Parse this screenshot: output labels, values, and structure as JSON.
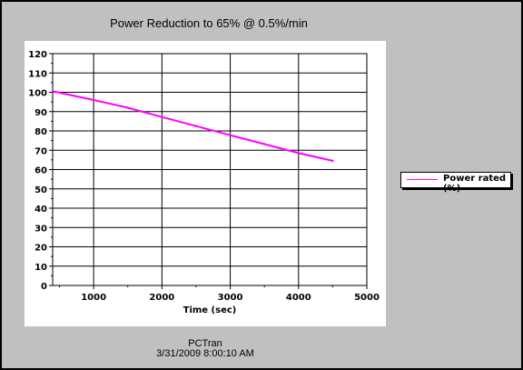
{
  "chart_data": {
    "type": "line",
    "title": "Power Reduction to 65% @ 0.5%/min",
    "xlabel": "Time (sec)",
    "ylabel": "",
    "xlim": [
      400,
      5000
    ],
    "ylim": [
      0,
      120
    ],
    "x_ticks": [
      1000,
      2000,
      3000,
      4000,
      5000
    ],
    "y_ticks": [
      0,
      10,
      20,
      30,
      40,
      50,
      60,
      70,
      80,
      90,
      100,
      110,
      120
    ],
    "grid": true,
    "legend_position": "right",
    "series": [
      {
        "name": "Power rated (%)",
        "color": "#ff00ff",
        "x": [
          400,
          1000,
          1500,
          2000,
          2500,
          3000,
          3500,
          4000,
          4500
        ],
        "y": [
          100.5,
          96.0,
          92.0,
          87.2,
          82.5,
          77.8,
          73.2,
          68.5,
          64.5
        ]
      }
    ]
  },
  "footer": {
    "app_name": "PCTran",
    "timestamp": "3/31/2009 8:00:10 AM"
  }
}
